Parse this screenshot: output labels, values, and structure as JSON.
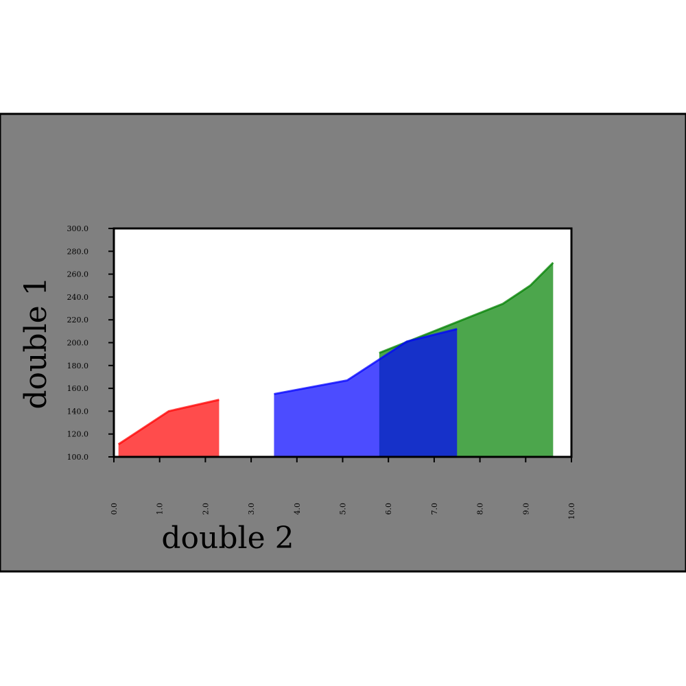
{
  "chart_data": {
    "type": "area",
    "title": "",
    "xlabel": "double 2",
    "ylabel": "double 1",
    "xlim": [
      0.0,
      10.0
    ],
    "ylim": [
      100.0,
      300.0
    ],
    "x_ticks": [
      "0.0",
      "1.0",
      "2.0",
      "3.0",
      "4.0",
      "5.0",
      "6.0",
      "7.0",
      "8.0",
      "9.0",
      "10.0"
    ],
    "y_ticks": [
      "100.0",
      "120.0",
      "140.0",
      "160.0",
      "180.0",
      "200.0",
      "220.0",
      "240.0",
      "260.0",
      "280.0",
      "300.0"
    ],
    "grid": false,
    "legend": "none",
    "series": [
      {
        "color": "#ff0000",
        "opacity": 0.7,
        "x": [
          0.1,
          1.2,
          2.3
        ],
        "y": [
          111,
          140,
          150
        ]
      },
      {
        "color": "#008000",
        "opacity": 0.7,
        "x": [
          5.8,
          8.5,
          9.1,
          9.6
        ],
        "y": [
          191,
          234,
          250,
          270
        ]
      },
      {
        "color": "#0000ff",
        "opacity": 0.7,
        "x": [
          3.5,
          5.1,
          6.4,
          7.5
        ],
        "y": [
          155,
          167,
          201,
          212
        ]
      }
    ],
    "colors": {
      "background": "#808080",
      "plot_background": "#ffffff",
      "axis": "#000000"
    }
  }
}
